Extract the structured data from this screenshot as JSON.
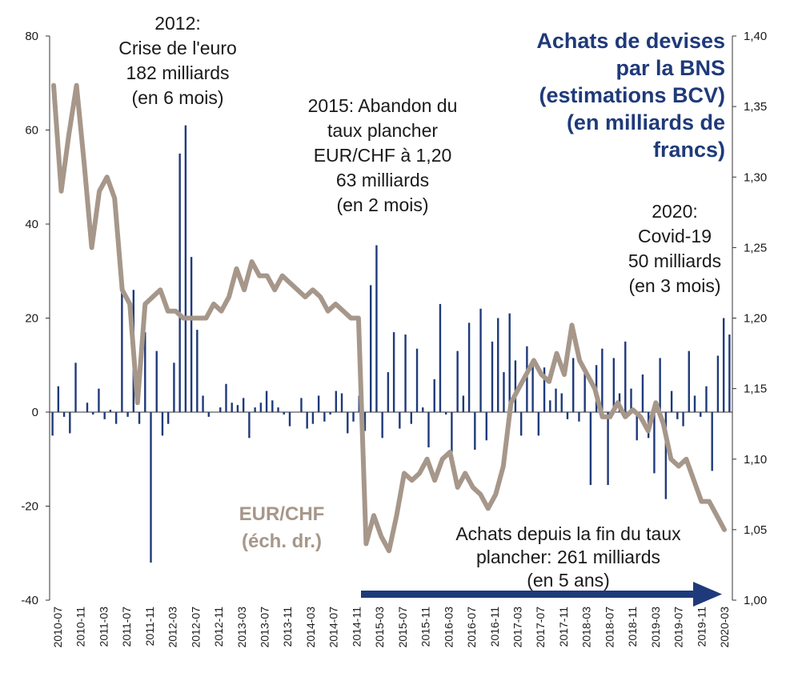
{
  "chart_data": {
    "type": "bar",
    "title": [
      "Achats de devises",
      "par la BNS",
      "(estimations BCV)",
      "(en milliards de",
      "francs)"
    ],
    "y_left": {
      "ylim": [
        -40,
        80
      ],
      "ticks": [
        "80",
        "60",
        "40",
        "20",
        "0",
        "-20",
        "-40"
      ]
    },
    "y_right": {
      "ylim": [
        1.0,
        1.4
      ],
      "ticks": [
        "1,40",
        "1,35",
        "1,30",
        "1,25",
        "1,20",
        "1,15",
        "1,10",
        "1,05",
        "1,00"
      ]
    },
    "x_tick_labels": [
      "2010-07",
      "2010-11",
      "2011-03",
      "2011-07",
      "2011-11",
      "2012-03",
      "2012-07",
      "2012-11",
      "2013-03",
      "2013-07",
      "2013-11",
      "2014-03",
      "2014-07",
      "2014-11",
      "2015-03",
      "2015-07",
      "2015-11",
      "2016-03",
      "2016-07",
      "2016-11",
      "2017-03",
      "2017-07",
      "2017-11",
      "2018-03",
      "2018-07",
      "2018-11",
      "2019-03",
      "2019-07",
      "2019-11",
      "2020-03"
    ],
    "series": [
      {
        "kind": "bar",
        "color": "#1f3a7a",
        "values": [
          -5,
          5.5,
          -1,
          -4.5,
          10.5,
          0,
          2,
          -0.5,
          5,
          -1.5,
          0.5,
          -2.5,
          30,
          -1,
          26,
          -2.5,
          17,
          -32,
          13,
          -5,
          -2.5,
          10.5,
          55,
          61,
          33,
          17.5,
          3.5,
          -1,
          0,
          1,
          6,
          2,
          1.5,
          3,
          -5.5,
          1,
          2,
          4.5,
          2.5,
          1,
          -0.5,
          -3,
          0,
          3,
          -3.5,
          -2.5,
          3.5,
          -2,
          -0.5,
          4.5,
          4,
          -4.5,
          -2,
          3.5,
          -4,
          27,
          35.5,
          -5.5,
          8.5,
          17,
          -3.5,
          16.5,
          -2.5,
          13.5,
          1,
          -7.5,
          7,
          23,
          -0.5,
          -8.5,
          13,
          3.5,
          19,
          -8,
          22,
          -6,
          15,
          20,
          8.5,
          21,
          11,
          -5,
          14,
          10,
          -5,
          9.5,
          2.5,
          5,
          4,
          -1.5,
          11.5,
          -2,
          9,
          -15.5,
          10,
          13.5,
          -15.5,
          11.5,
          4,
          15,
          5,
          -6,
          8,
          -5.5,
          -13,
          11.5,
          -18.5,
          4.5,
          -1.5,
          -3,
          13,
          3.5,
          -1,
          5.5,
          -12.5,
          12,
          20,
          16.5
        ]
      },
      {
        "kind": "line",
        "name": "EUR/CHF (éch. dr.)",
        "color": "#a6978a",
        "values": [
          1.365,
          1.29,
          1.33,
          1.365,
          1.31,
          1.25,
          1.29,
          1.3,
          1.285,
          1.22,
          1.21,
          1.14,
          1.21,
          1.215,
          1.22,
          1.205,
          1.205,
          1.2,
          1.2,
          1.2,
          1.2,
          1.21,
          1.205,
          1.215,
          1.235,
          1.22,
          1.24,
          1.23,
          1.23,
          1.22,
          1.23,
          1.225,
          1.22,
          1.215,
          1.22,
          1.215,
          1.205,
          1.21,
          1.205,
          1.2,
          1.2,
          1.04,
          1.06,
          1.045,
          1.035,
          1.06,
          1.09,
          1.085,
          1.09,
          1.1,
          1.085,
          1.1,
          1.105,
          1.08,
          1.09,
          1.08,
          1.075,
          1.065,
          1.075,
          1.095,
          1.14,
          1.15,
          1.16,
          1.17,
          1.16,
          1.155,
          1.175,
          1.16,
          1.195,
          1.17,
          1.16,
          1.15,
          1.13,
          1.13,
          1.14,
          1.13,
          1.135,
          1.13,
          1.12,
          1.14,
          1.125,
          1.1,
          1.095,
          1.1,
          1.085,
          1.07,
          1.07,
          1.06,
          1.05
        ]
      }
    ],
    "annotations": {
      "crisis_2012": [
        "2012:",
        "Crise de l'euro",
        "182 milliards",
        "(en 6 mois)"
      ],
      "floor_2015": [
        "2015: Abandon du",
        "taux plancher",
        "EUR/CHF à 1,20",
        "63 milliards",
        "(en 2 mois)"
      ],
      "covid_2020": [
        "2020:",
        "Covid-19",
        "50 milliards",
        "(en 3 mois)"
      ],
      "eurchf_label": [
        "EUR/CHF",
        "(éch. dr.)"
      ],
      "since_floor": [
        "Achats depuis la fin du taux",
        "plancher: 261 milliards",
        "(en 5 ans)"
      ]
    }
  }
}
